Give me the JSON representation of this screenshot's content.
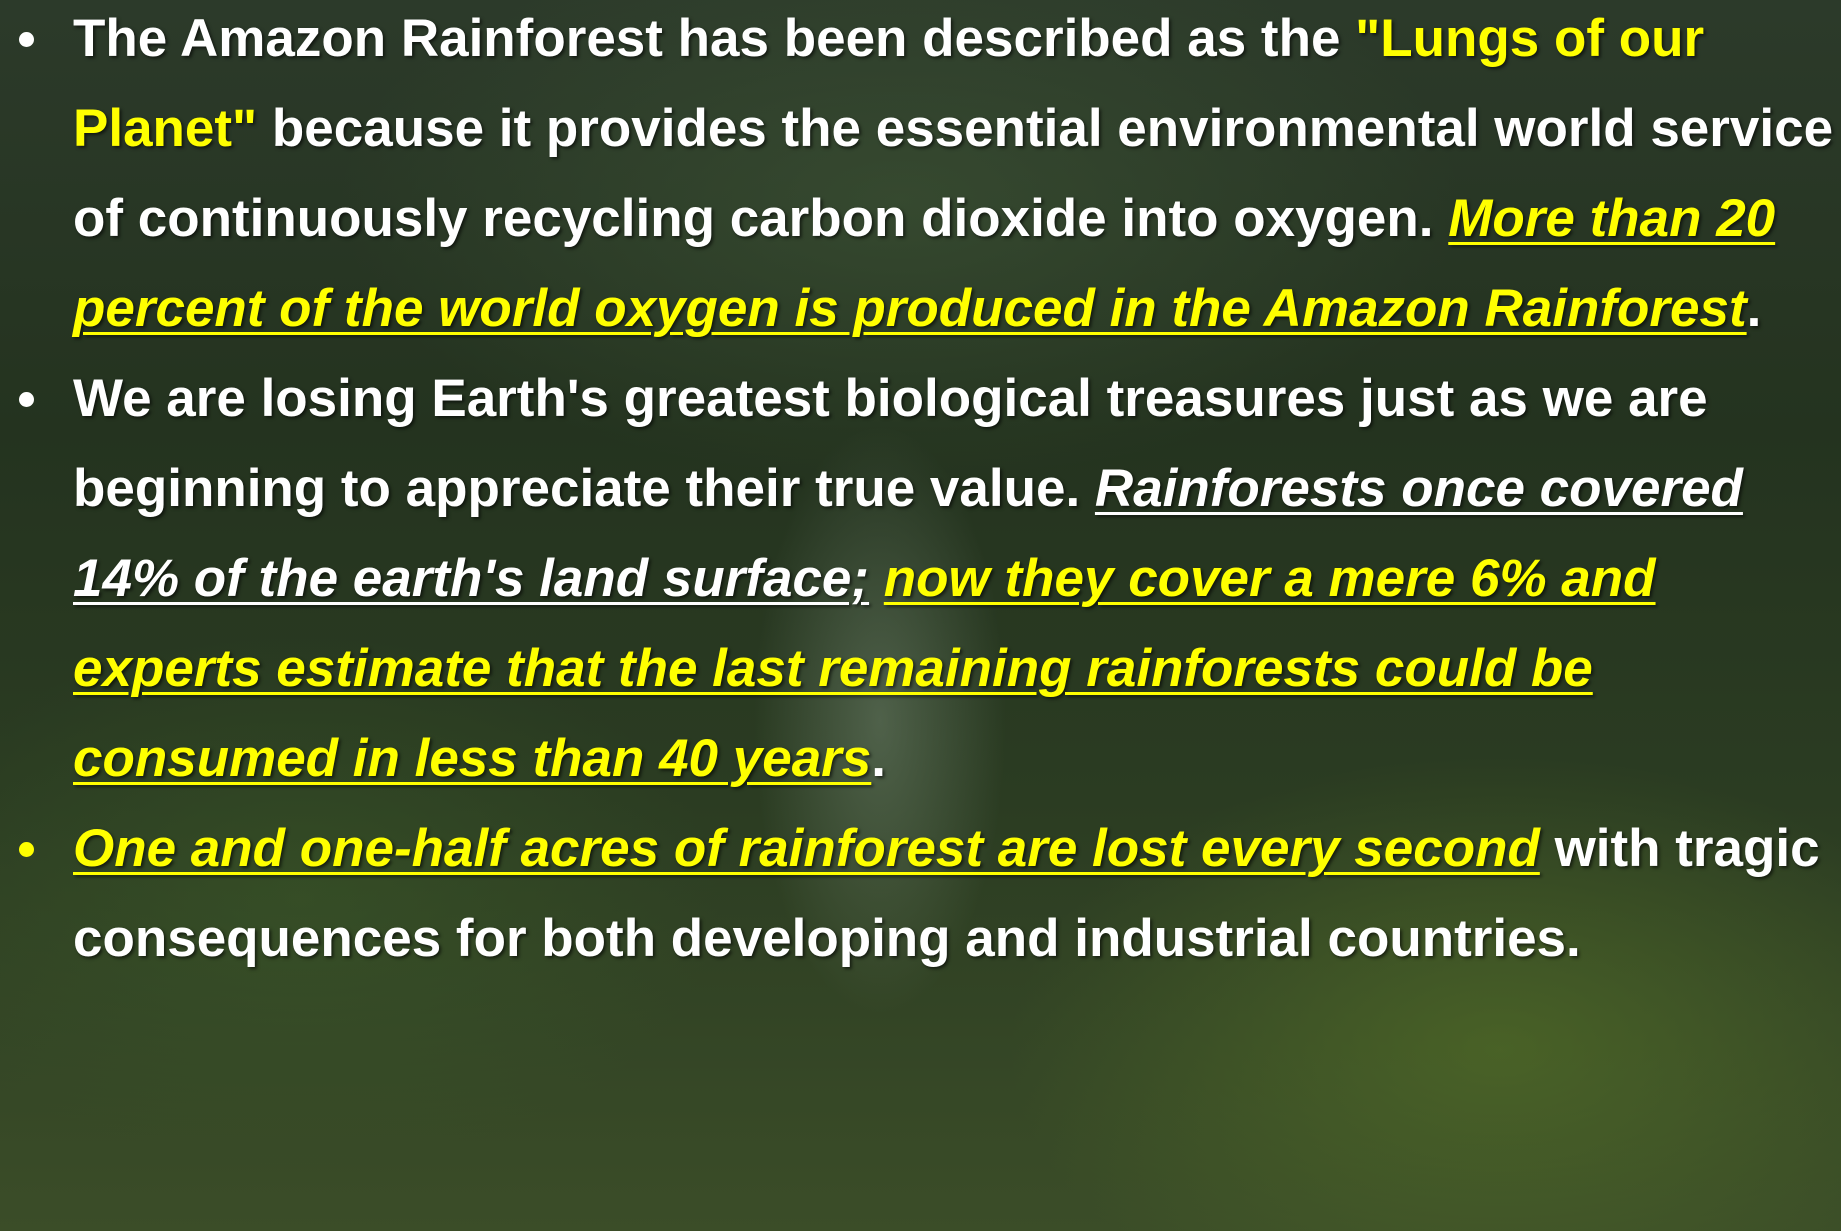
{
  "bullets": [
    {
      "runs": [
        "The Amazon Rainforest has been described as the",
        "\"Lungs of our Planet\"",
        "because it provides the essential environmental world service of continuously recycling carbon dioxide into oxygen.",
        "More than 20 percent of the world oxygen is produced in the Amazon Rainforest",
        "."
      ]
    },
    {
      "runs": [
        "We are losing Earth's greatest biological treasures just as we are beginning to appreciate their true value.",
        "Rainforests once covered 14% of the earth's land surface;",
        "now they cover a mere 6% and experts estimate that the last remaining rainforests could be consumed in less than 40 years",
        "."
      ]
    },
    {
      "runs": [
        "One and one-half acres of rainforest are lost every second",
        "with tragic consequences for both developing and industrial countries."
      ]
    }
  ]
}
